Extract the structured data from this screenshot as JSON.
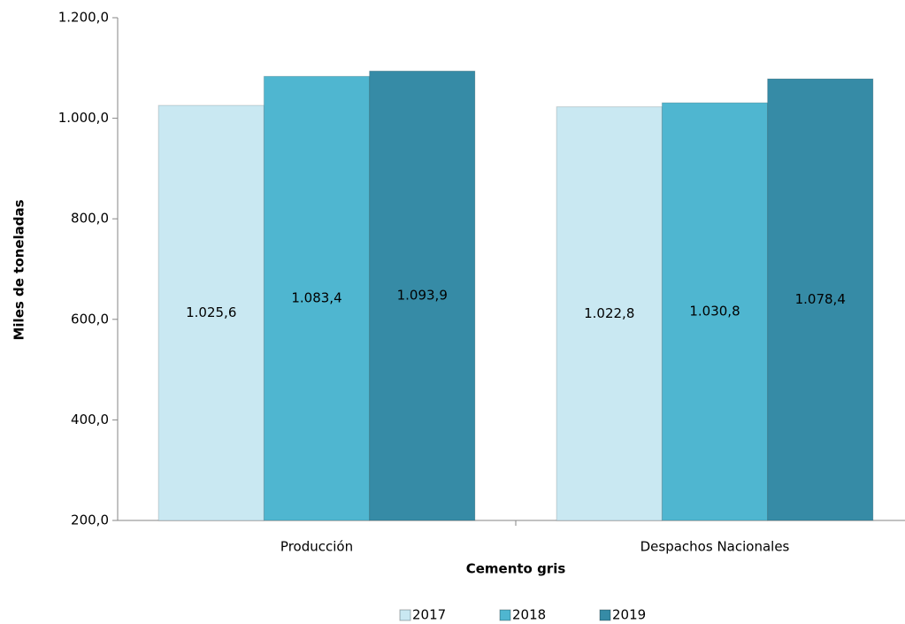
{
  "chart_data": {
    "type": "bar",
    "x_label": "Cemento gris",
    "y_label": "Miles de toneladas",
    "categories": [
      "Producción",
      "Despachos Nacionales"
    ],
    "series": [
      {
        "name": "2017",
        "color": "#c9e8f2",
        "values": [
          1025.6,
          1022.8
        ],
        "value_labels": [
          "1.025,6",
          "1.022,8"
        ]
      },
      {
        "name": "2018",
        "color": "#4fb6d0",
        "values": [
          1083.4,
          1030.8
        ],
        "value_labels": [
          "1.083,4",
          "1.030,8"
        ]
      },
      {
        "name": "2019",
        "color": "#368ba6",
        "values": [
          1093.9,
          1078.4
        ],
        "value_labels": [
          "1.093,9",
          "1.078,4"
        ]
      }
    ],
    "ylim": [
      200,
      1200
    ],
    "yticks": [
      {
        "value": 200,
        "label": "200,0"
      },
      {
        "value": 400,
        "label": "400,0"
      },
      {
        "value": 600,
        "label": "600,0"
      },
      {
        "value": 800,
        "label": "800,0"
      },
      {
        "value": 1000,
        "label": "1.000,0"
      },
      {
        "value": 1200,
        "label": "1.200,0"
      }
    ],
    "grid": false,
    "legend": "bottom"
  }
}
